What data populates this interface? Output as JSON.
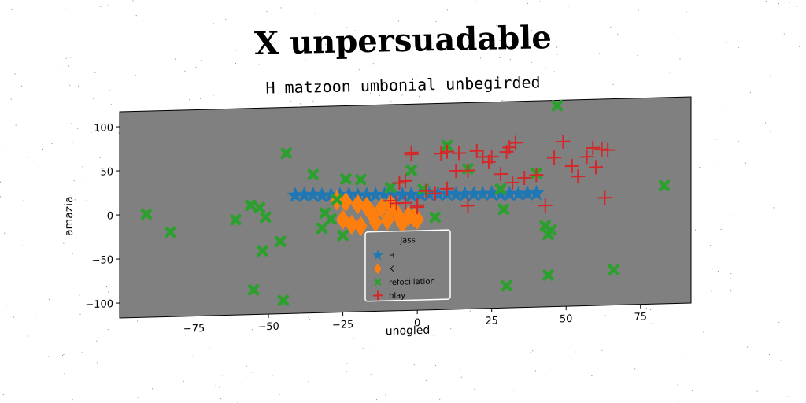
{
  "chart_data": {
    "type": "scatter",
    "title": "X unpersuadable",
    "subtitle": "H matzoon umbonial unbegirded",
    "xlabel": "unogled",
    "ylabel": "amazia",
    "xlim": [
      -100,
      92
    ],
    "ylim": [
      -117,
      117
    ],
    "xticks": [
      -75,
      -50,
      -25,
      0,
      25,
      50,
      75
    ],
    "yticks": [
      -100,
      -50,
      0,
      50,
      100
    ],
    "xtick_labels": [
      "−75",
      "−50",
      "−25",
      "0",
      "25",
      "50",
      "75"
    ],
    "ytick_labels": [
      "−100",
      "−50",
      "0",
      "50",
      "100"
    ],
    "grid": false,
    "background_color": "#808080",
    "legend": {
      "title": "jass",
      "placement": "lower center"
    },
    "series": [
      {
        "name": "H",
        "marker": "star",
        "color": "#1f77b4",
        "x": [
          -41,
          -38,
          -35,
          -32,
          -29,
          -26,
          -23,
          -20,
          -17,
          -14,
          -11,
          -8,
          -5,
          -2,
          1,
          4,
          7,
          10,
          13,
          16,
          19,
          22,
          25,
          28,
          31,
          34,
          37,
          40
        ],
        "y": [
          17,
          17,
          17,
          16,
          16,
          16,
          16,
          15,
          15,
          15,
          15,
          15,
          14,
          14,
          14,
          14,
          14,
          14,
          13,
          13,
          13,
          13,
          13,
          12,
          12,
          12,
          12,
          12
        ]
      },
      {
        "name": "K",
        "marker": "diamond",
        "color": "#ff7f0e",
        "x": [
          -27,
          -25,
          -24,
          -22,
          -20,
          -19,
          -17,
          -15,
          -14,
          -12,
          -10,
          -9,
          -7,
          -5,
          -3,
          -1,
          0
        ],
        "y": [
          10,
          -12,
          8,
          -18,
          5,
          -20,
          2,
          -8,
          -16,
          0,
          -14,
          4,
          -6,
          -18,
          -10,
          -12,
          -14
        ]
      },
      {
        "name": "refocillation",
        "marker": "x-filled",
        "color": "#2ca02c",
        "x": [
          -91,
          -83,
          -61,
          -56,
          -55,
          -53,
          -52,
          -51,
          -46,
          -44,
          -45,
          -35,
          -32,
          -31,
          -29,
          -27,
          -25,
          -24,
          -19,
          -9,
          -2,
          2,
          6,
          10,
          17,
          28,
          29,
          30,
          40,
          43,
          44,
          44,
          45,
          47,
          66,
          83
        ],
        "y": [
          0,
          -21,
          -9,
          7,
          -89,
          4,
          -45,
          -7,
          -35,
          65,
          -102,
          40,
          -21,
          -4,
          -11,
          11,
          -30,
          34,
          33,
          23,
          42,
          20,
          -12,
          69,
          42,
          18,
          -5,
          -92,
          35,
          -25,
          -35,
          -81,
          -30,
          111,
          -77,
          17
        ]
      },
      {
        "name": "blay",
        "marker": "plus",
        "color": "#d62728",
        "x": [
          -2,
          -2,
          -4,
          -6,
          -7,
          -9,
          0,
          3,
          6,
          8,
          10,
          14,
          17,
          20,
          22,
          24,
          30,
          31,
          33,
          36,
          40,
          43,
          46,
          49,
          52,
          54,
          57,
          59,
          60,
          62,
          63,
          64,
          28,
          32,
          13,
          25,
          10,
          0,
          -4,
          17
        ],
        "y": [
          60,
          62,
          30,
          28,
          5,
          8,
          2,
          18,
          15,
          60,
          62,
          60,
          40,
          62,
          55,
          49,
          60,
          65,
          70,
          30,
          33,
          -2,
          52,
          70,
          42,
          30,
          52,
          62,
          40,
          60,
          5,
          59,
          35,
          25,
          40,
          55,
          20,
          0,
          5,
          0
        ]
      }
    ]
  }
}
